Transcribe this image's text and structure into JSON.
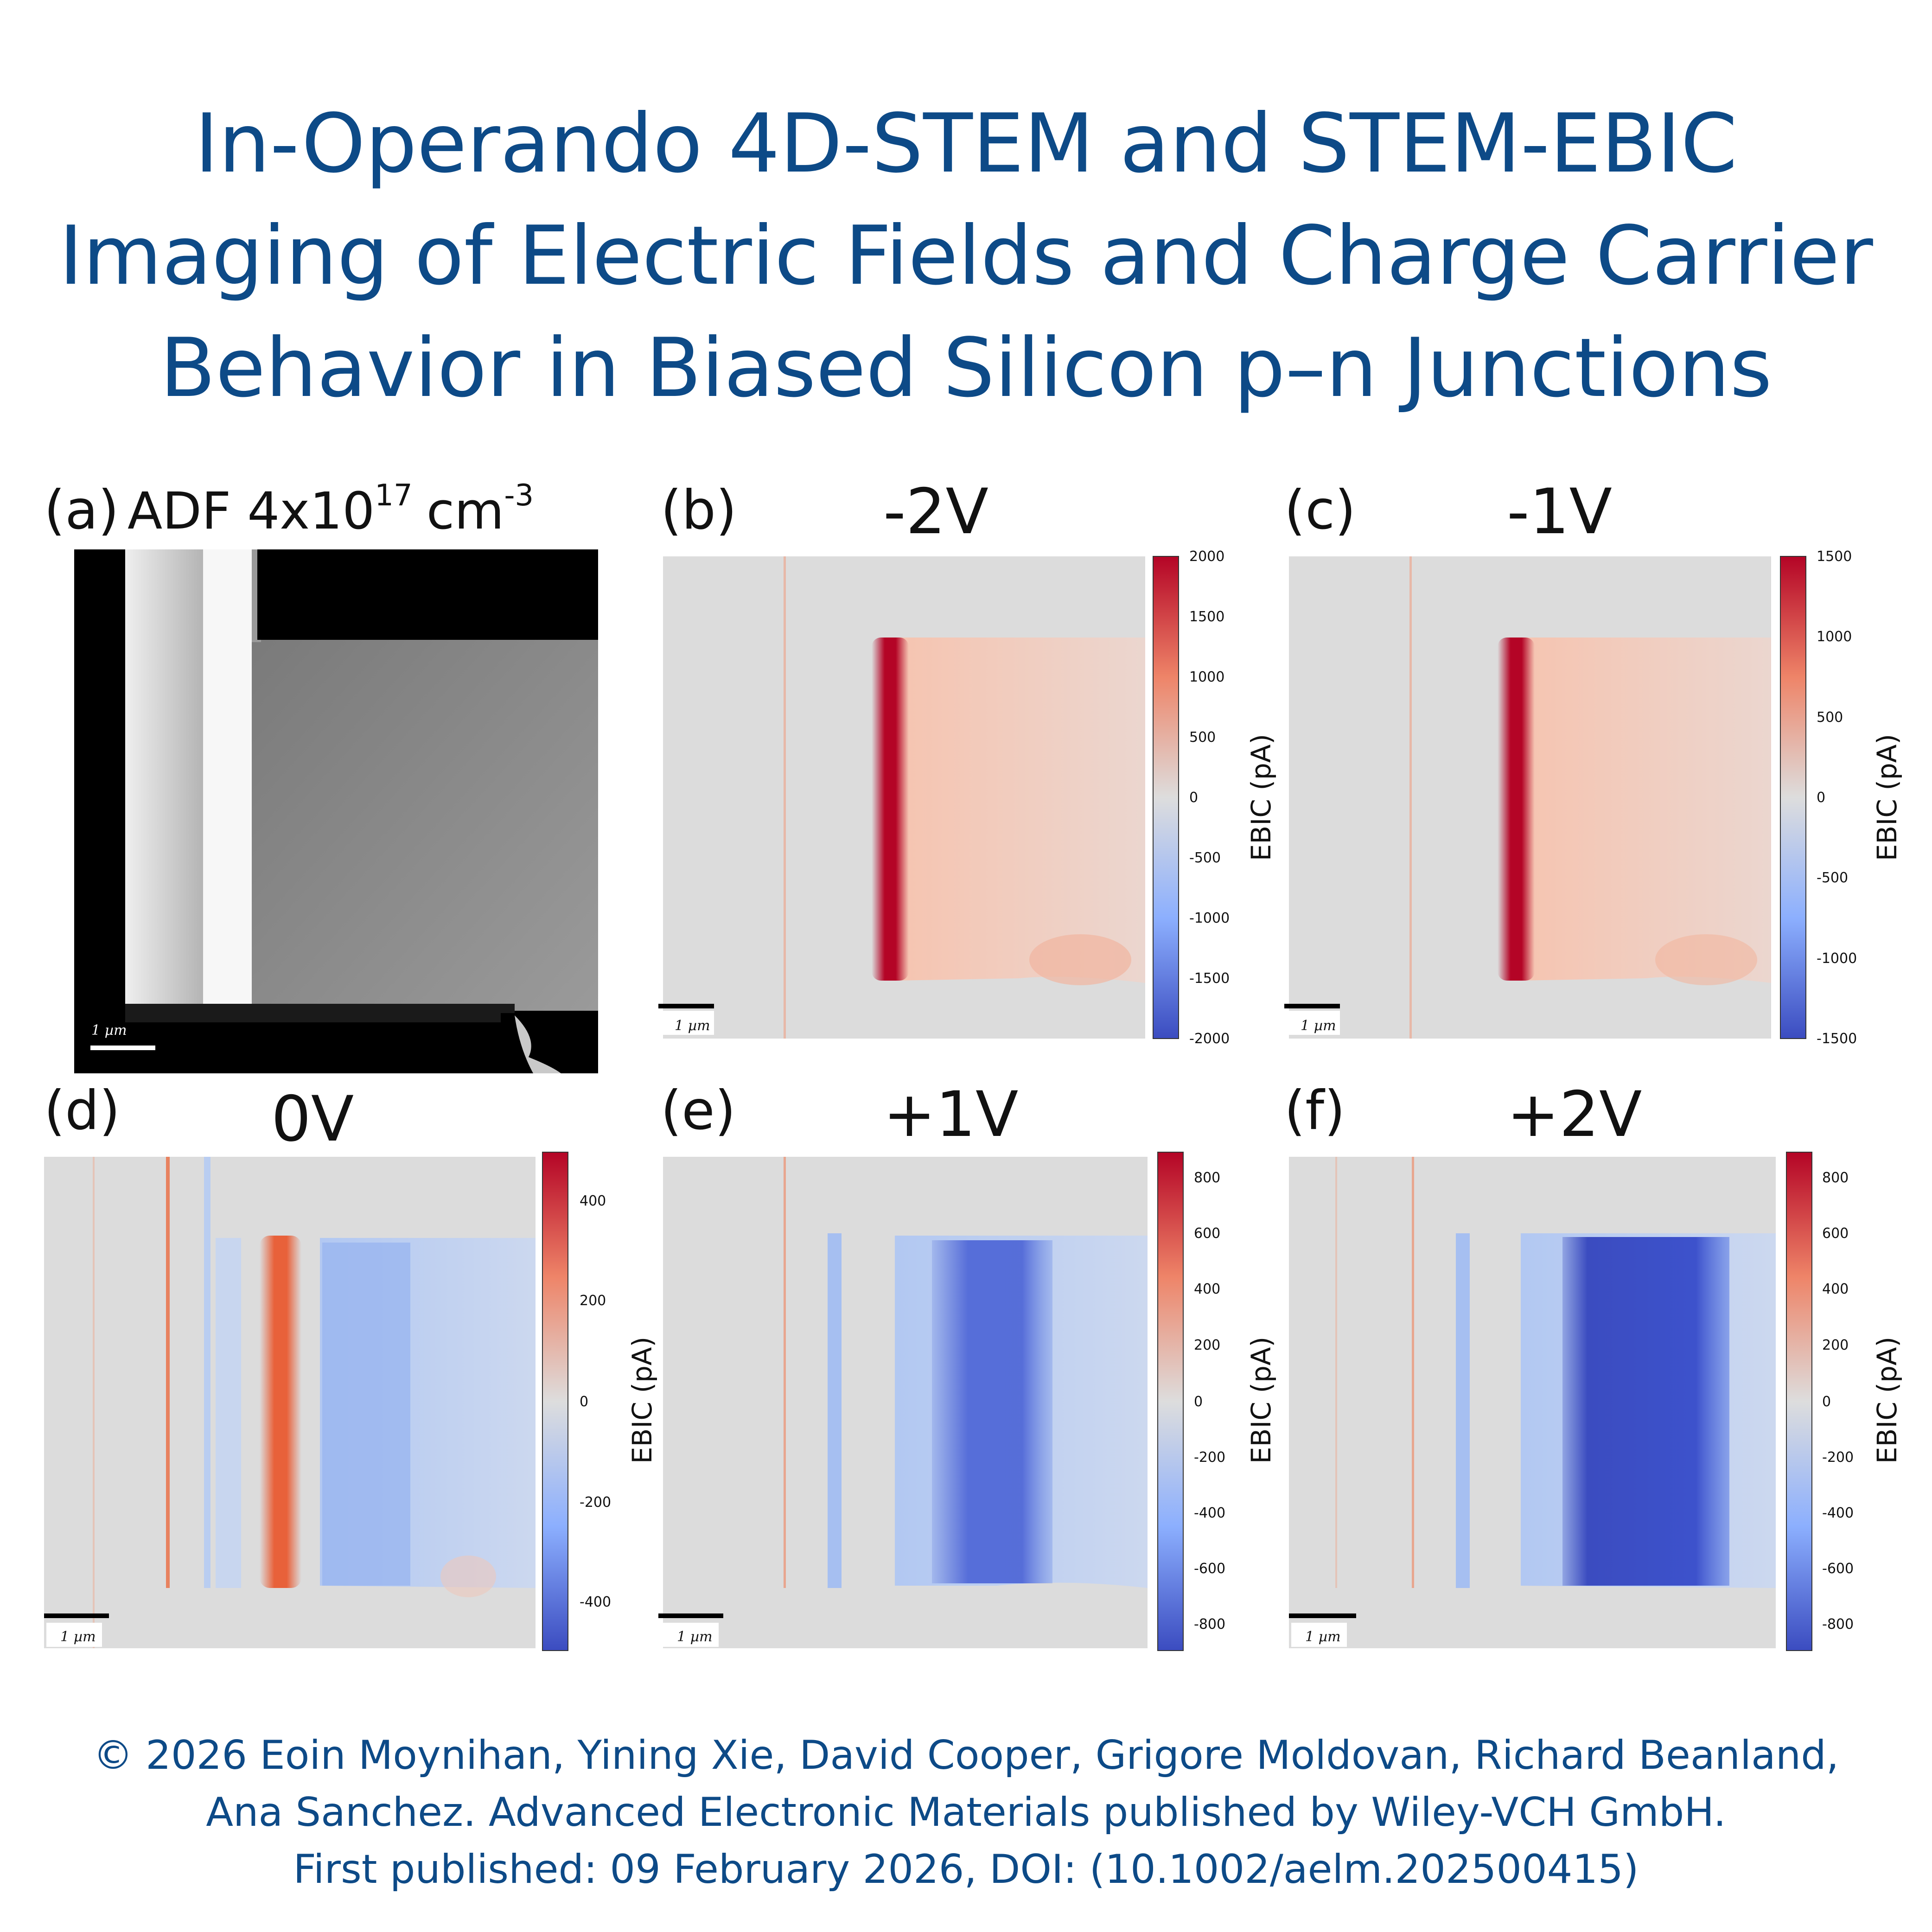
{
  "title": {
    "lines": [
      "In-Operando 4D-STEM and STEM-EBIC",
      "Imaging of Electric Fields and Charge Carrier",
      "Behavior in Biased Silicon p–n Junctions"
    ]
  },
  "panel_a": {
    "letter": "(a)",
    "label": "ADF 4x10",
    "exponent": "17",
    "unit": "cm",
    "unit_exponent": "-3",
    "scalebar": "1 µm"
  },
  "panels": [
    {
      "letter": "(b)",
      "voltage": "-2V",
      "colorbar_label": "EBIC (pA)",
      "vmax": 2000,
      "ticks": [
        "2000",
        "1500",
        "1000",
        "500",
        "0",
        "-500",
        "-1000",
        "-1500",
        "-2000"
      ],
      "scalebar": "1 µm"
    },
    {
      "letter": "(c)",
      "voltage": "-1V",
      "colorbar_label": "EBIC (pA)",
      "vmax": 1500,
      "ticks": [
        "1500",
        "1000",
        "500",
        "0",
        "-500",
        "-1000",
        "-1500"
      ],
      "scalebar": "1 µm"
    },
    {
      "letter": "(d)",
      "voltage": "0V",
      "colorbar_label": "EBIC (pA)",
      "vmax": 500,
      "ticks": [
        "400",
        "200",
        "0",
        "-200",
        "-400"
      ],
      "scalebar": "1 µm"
    },
    {
      "letter": "(e)",
      "voltage": "+1V",
      "colorbar_label": "EBIC (pA)",
      "vmax": 900,
      "ticks": [
        "800",
        "600",
        "400",
        "200",
        "0",
        "-200",
        "-400",
        "-600",
        "-800"
      ],
      "scalebar": "1 µm"
    },
    {
      "letter": "(f)",
      "voltage": "+2V",
      "colorbar_label": "EBIC (pA)",
      "vmax": 900,
      "ticks": [
        "800",
        "600",
        "400",
        "200",
        "0",
        "-200",
        "-400",
        "-600",
        "-800"
      ],
      "scalebar": "1 µm"
    }
  ],
  "colors": {
    "title": "#0d4a87",
    "positive": "#b40426",
    "negative": "#3b4cc0",
    "neutral": "#dddddd"
  },
  "footer": {
    "lines": [
      "© 2026 Eoin Moynihan, Yining Xie, David Cooper, Grigore Moldovan, Richard Beanland,",
      "Ana Sanchez. Advanced Electronic Materials published by Wiley-VCH GmbH.",
      "First published: 09 February 2026, DOI: (10.1002/aelm.202500415)"
    ]
  }
}
